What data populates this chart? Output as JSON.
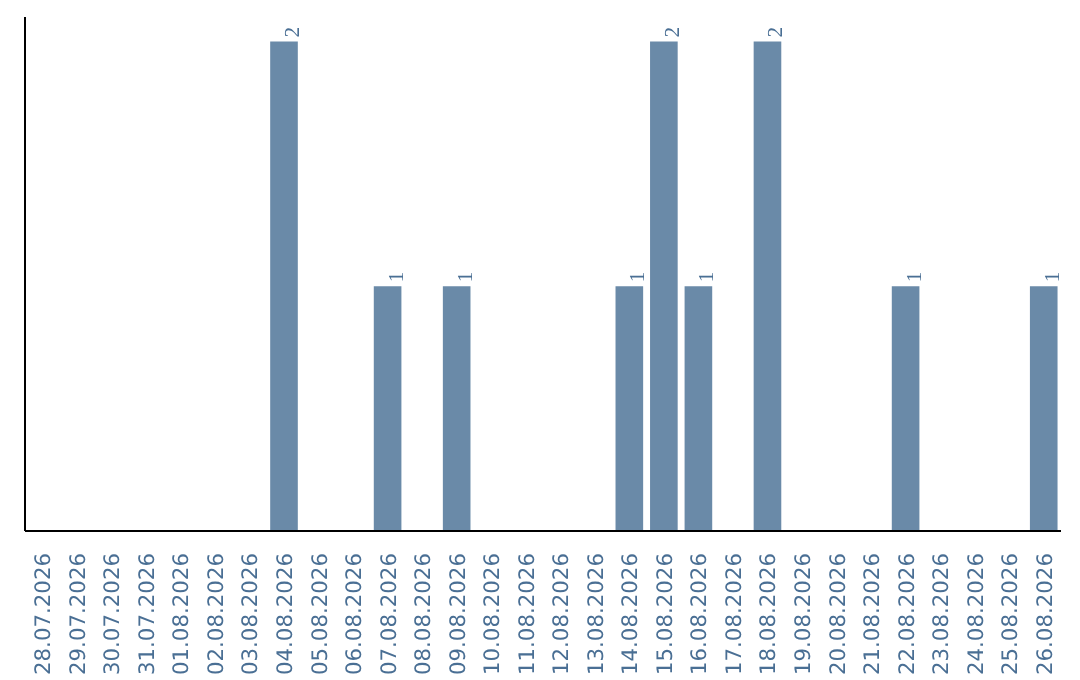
{
  "chart_data": {
    "type": "bar",
    "categories": [
      "28.07.2026",
      "29.07.2026",
      "30.07.2026",
      "31.07.2026",
      "01.08.2026",
      "02.08.2026",
      "03.08.2026",
      "04.08.2026",
      "05.08.2026",
      "06.08.2026",
      "07.08.2026",
      "08.08.2026",
      "09.08.2026",
      "10.08.2026",
      "11.08.2026",
      "12.08.2026",
      "13.08.2026",
      "14.08.2026",
      "15.08.2026",
      "16.08.2026",
      "17.08.2026",
      "18.08.2026",
      "19.08.2026",
      "20.08.2026",
      "21.08.2026",
      "22.08.2026",
      "23.08.2026",
      "24.08.2026",
      "25.08.2026",
      "26.08.2026"
    ],
    "values": [
      0,
      0,
      0,
      0,
      0,
      0,
      0,
      2,
      0,
      0,
      1,
      0,
      1,
      0,
      0,
      0,
      0,
      1,
      2,
      1,
      0,
      2,
      0,
      0,
      0,
      1,
      0,
      0,
      0,
      1
    ],
    "value_labels": [
      null,
      null,
      null,
      null,
      null,
      null,
      null,
      "2",
      null,
      null,
      "1",
      null,
      "1",
      null,
      null,
      null,
      null,
      "1",
      "2",
      "1",
      null,
      "2",
      null,
      null,
      null,
      "1",
      null,
      null,
      null,
      "1"
    ],
    "color": "#6a8aa8",
    "ylim": [
      0,
      2.1
    ],
    "tick_labels": "x",
    "grid": false
  }
}
